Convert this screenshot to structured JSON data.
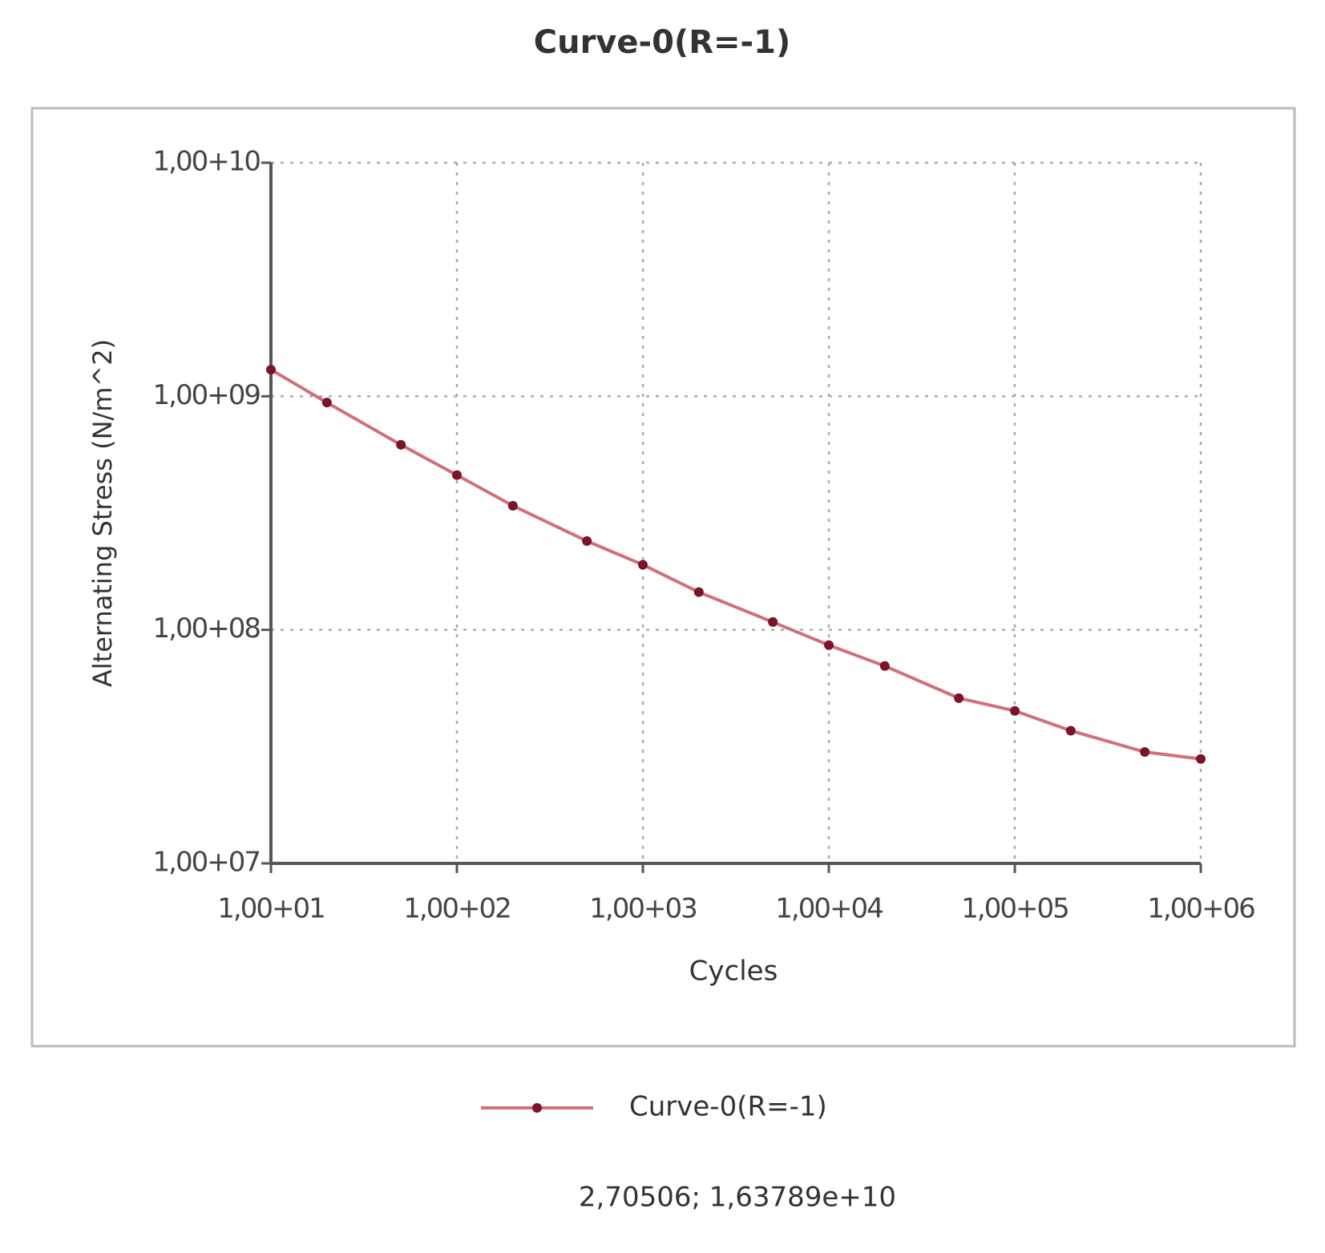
{
  "chart_data": {
    "type": "line",
    "title": "Curve-0(R=-1)",
    "x_label": "Cycles",
    "y_label": "Alternating Stress (N/m^2)",
    "xscale": "log",
    "yscale": "log",
    "grid": true,
    "xlim": [
      10,
      1000000
    ],
    "ylim": [
      10000000,
      10000000000
    ],
    "xticks": [
      {
        "value": 10,
        "label": "1,00+01"
      },
      {
        "value": 100,
        "label": "1,00+02"
      },
      {
        "value": 1000,
        "label": "1,00+03"
      },
      {
        "value": 10000,
        "label": "1,00+04"
      },
      {
        "value": 100000,
        "label": "1,00+05"
      },
      {
        "value": 1000000,
        "label": "1,00+06"
      }
    ],
    "yticks": [
      {
        "value": 10000000,
        "label": "1,00+07"
      },
      {
        "value": 100000000,
        "label": "1,00+08"
      },
      {
        "value": 1000000000,
        "label": "1,00+09"
      },
      {
        "value": 10000000000,
        "label": "1,00+10"
      }
    ],
    "x": [
      10,
      20,
      50,
      100,
      200,
      500,
      1000,
      2000,
      5000,
      10000,
      20000,
      50000,
      100000,
      200000,
      500000,
      1000000
    ],
    "series": [
      {
        "name": "Curve-0(R=-1)",
        "color": "#d0707a",
        "marker_color": "#7a1426",
        "values": [
          1300000000,
          940000000,
          620000000,
          460000000,
          340000000,
          240000000,
          190000000,
          145000000,
          108000000,
          86000000,
          70000000,
          51000000,
          45000000,
          37000000,
          30000000,
          28000000
        ]
      }
    ],
    "legend": "bottom",
    "status_text": "2,70506; 1,63789e+10"
  }
}
